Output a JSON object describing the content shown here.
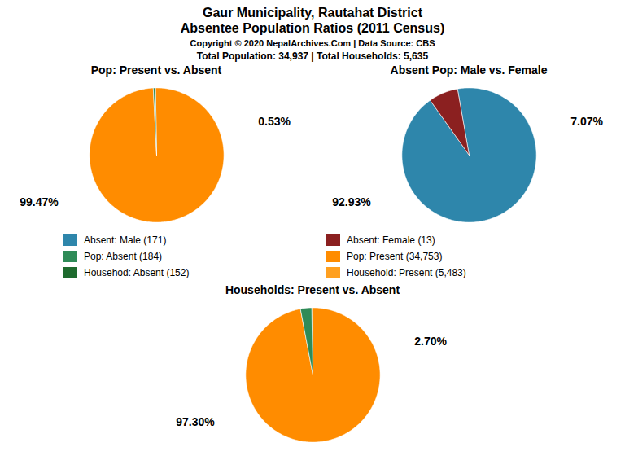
{
  "title": "Gaur Municipality, Rautahat District",
  "subtitle": "Absentee Population Ratios (2011 Census)",
  "annotations": [
    "Copyright © 2020 NepalArchives.Com | Data Source: CBS",
    "Total Population: 34,937 | Total Households: 5,635"
  ],
  "legend_entries": [
    {
      "name": "Absent: Male (171)",
      "color": "#2E86AB"
    },
    {
      "name": "Absent: Female (13)",
      "color": "#8B2020"
    },
    {
      "name": "Pop: Absent (184)",
      "color": "#2E8B57"
    },
    {
      "name": "Pop: Present (34,753)",
      "color": "#FF8C00"
    },
    {
      "name": "Househod: Absent (152)",
      "color": "#1E6B2E"
    },
    {
      "name": "Household: Present (5,483)",
      "color": "#FFA020"
    }
  ],
  "chart_data": [
    {
      "type": "pie",
      "title": "Pop: Present vs. Absent",
      "values": [
        99.47,
        0.53
      ],
      "value_labels": [
        "99.47%",
        "0.53%"
      ],
      "colors": [
        "#FF8C00",
        "#2E8B57"
      ],
      "data_labels": true
    },
    {
      "type": "pie",
      "title": "Absent Pop: Male vs. Female",
      "values": [
        92.93,
        7.07
      ],
      "value_labels": [
        "92.93%",
        "7.07%"
      ],
      "colors": [
        "#2E86AB",
        "#8B2020"
      ],
      "data_labels": true
    },
    {
      "type": "pie",
      "title": "Households: Present vs. Absent",
      "values": [
        97.3,
        2.7
      ],
      "value_labels": [
        "97.30%",
        "2.70%"
      ],
      "colors": [
        "#FF8C00",
        "#2E8B57"
      ],
      "data_labels": true
    }
  ]
}
